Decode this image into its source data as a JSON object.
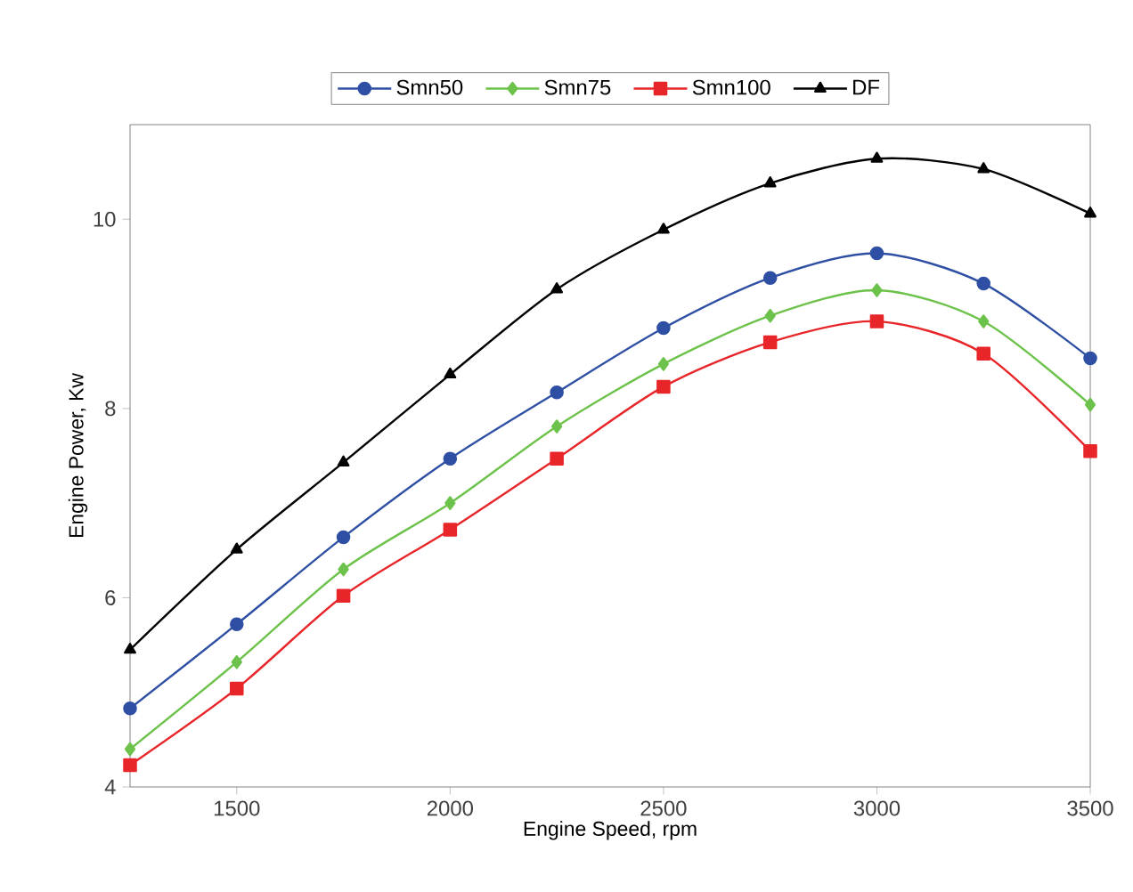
{
  "chart_data": {
    "type": "line",
    "xlabel": "Engine Speed, rpm",
    "ylabel": "Engine Power, Kw",
    "x": [
      1250,
      1500,
      1750,
      2000,
      2250,
      2500,
      2750,
      3000,
      3250,
      3500
    ],
    "series": [
      {
        "name": "Smn50",
        "color": "#2e4fa3",
        "marker": "circle",
        "values": [
          4.83,
          5.72,
          6.64,
          7.47,
          8.17,
          8.85,
          9.38,
          9.64,
          9.32,
          8.53
        ]
      },
      {
        "name": "Smn75",
        "color": "#6cc24a",
        "marker": "diamond",
        "values": [
          4.4,
          5.32,
          6.3,
          7.0,
          7.81,
          8.47,
          8.98,
          9.25,
          8.92,
          8.04
        ]
      },
      {
        "name": "Smn100",
        "color": "#e8262a",
        "marker": "square",
        "values": [
          4.23,
          5.04,
          6.02,
          6.72,
          7.47,
          8.23,
          8.7,
          8.92,
          8.58,
          7.55
        ]
      },
      {
        "name": "DF",
        "color": "#000000",
        "marker": "triangle",
        "values": [
          5.45,
          6.51,
          7.43,
          8.36,
          9.26,
          9.89,
          10.38,
          10.64,
          10.53,
          10.06
        ]
      }
    ],
    "xlim": [
      1250,
      3500
    ],
    "ylim": [
      4,
      11
    ],
    "xticks": [
      1500,
      2000,
      2500,
      3000,
      3500
    ],
    "yticks": [
      4,
      6,
      8,
      10
    ],
    "legend": "top",
    "line_style": "solid"
  }
}
